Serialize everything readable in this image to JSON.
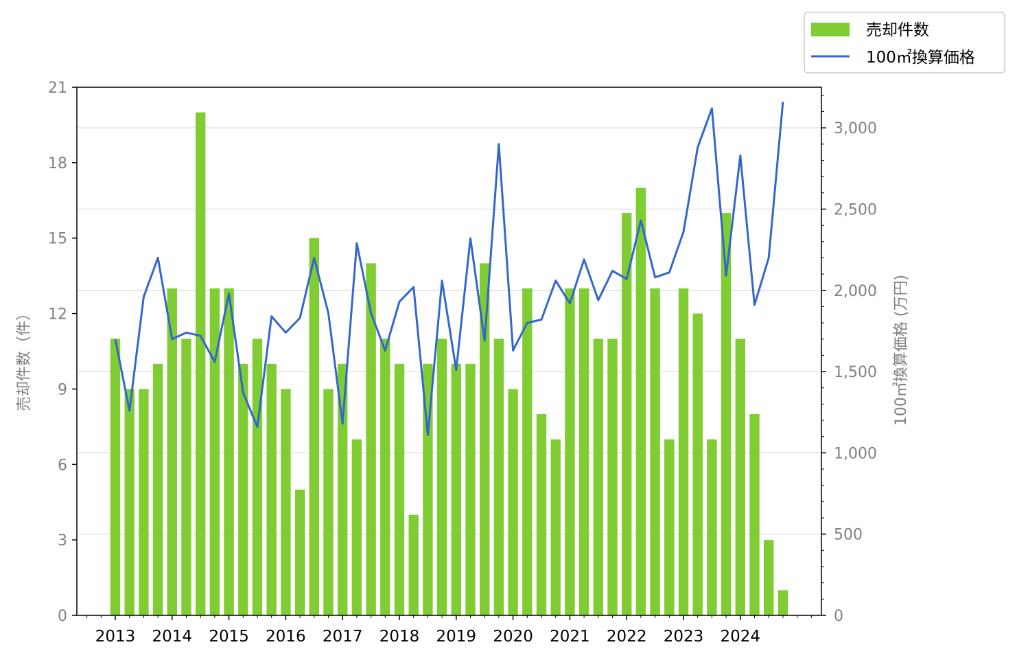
{
  "chart_data": {
    "type": "bar+line",
    "title": "",
    "xlabel": "",
    "x_ticks": [
      "2013",
      "2014",
      "2015",
      "2016",
      "2017",
      "2018",
      "2019",
      "2020",
      "2021",
      "2022",
      "2023",
      "2024"
    ],
    "y_left": {
      "label": "売却件数（件）",
      "ticks": [
        "0",
        "3",
        "6",
        "9",
        "12",
        "15",
        "18",
        "21"
      ],
      "lim": [
        0,
        21
      ]
    },
    "y_right": {
      "label": "100㎡換算価格 (万円)",
      "ticks": [
        "0",
        "500",
        "1,000",
        "1,500",
        "2,000",
        "2,500",
        "3,000"
      ],
      "lim": [
        0,
        3250
      ]
    },
    "periods": [
      "2013Q1",
      "2013Q2",
      "2013Q3",
      "2013Q4",
      "2014Q1",
      "2014Q2",
      "2014Q3",
      "2014Q4",
      "2015Q1",
      "2015Q2",
      "2015Q3",
      "2015Q4",
      "2016Q1",
      "2016Q2",
      "2016Q3",
      "2016Q4",
      "2017Q1",
      "2017Q2",
      "2017Q3",
      "2017Q4",
      "2018Q1",
      "2018Q2",
      "2018Q3",
      "2018Q4",
      "2019Q1",
      "2019Q2",
      "2019Q3",
      "2019Q4",
      "2020Q1",
      "2020Q2",
      "2020Q3",
      "2020Q4",
      "2021Q1",
      "2021Q2",
      "2021Q3",
      "2021Q4",
      "2022Q1",
      "2022Q2",
      "2022Q3",
      "2022Q4",
      "2023Q1",
      "2023Q2",
      "2023Q3",
      "2023Q4",
      "2024Q1",
      "2024Q2",
      "2024Q3",
      "2024Q4"
    ],
    "series": [
      {
        "name": "売却件数",
        "type": "bar",
        "axis": "left",
        "color": "#7fcc33",
        "values": [
          11,
          9,
          9,
          10,
          13,
          11,
          20,
          13,
          13,
          10,
          11,
          10,
          9,
          5,
          15,
          9,
          10,
          7,
          14,
          11,
          10,
          4,
          10,
          11,
          10,
          10,
          14,
          11,
          9,
          13,
          8,
          7,
          13,
          13,
          11,
          11,
          16,
          17,
          13,
          7,
          13,
          12,
          7,
          16,
          11,
          8,
          3,
          1
        ]
      },
      {
        "name": "100㎡換算価格",
        "type": "line",
        "axis": "right",
        "color": "#3366cc",
        "values": [
          1700,
          1260,
          1960,
          2200,
          1700,
          1740,
          1720,
          1560,
          1980,
          1370,
          1160,
          1840,
          1740,
          1830,
          2200,
          1860,
          1180,
          2290,
          1860,
          1630,
          1930,
          2020,
          1110,
          2060,
          1510,
          2320,
          1690,
          2900,
          1630,
          1800,
          1820,
          2060,
          1920,
          2190,
          1940,
          2120,
          2070,
          2430,
          2080,
          2110,
          2360,
          2880,
          3120,
          2090,
          2830,
          1910,
          2200,
          3160
        ]
      }
    ],
    "grid": "horizontal (right axis)",
    "legend": {
      "placement": "top-right, outside plot",
      "entries": [
        "売却件数",
        "100㎡換算価格"
      ]
    }
  }
}
